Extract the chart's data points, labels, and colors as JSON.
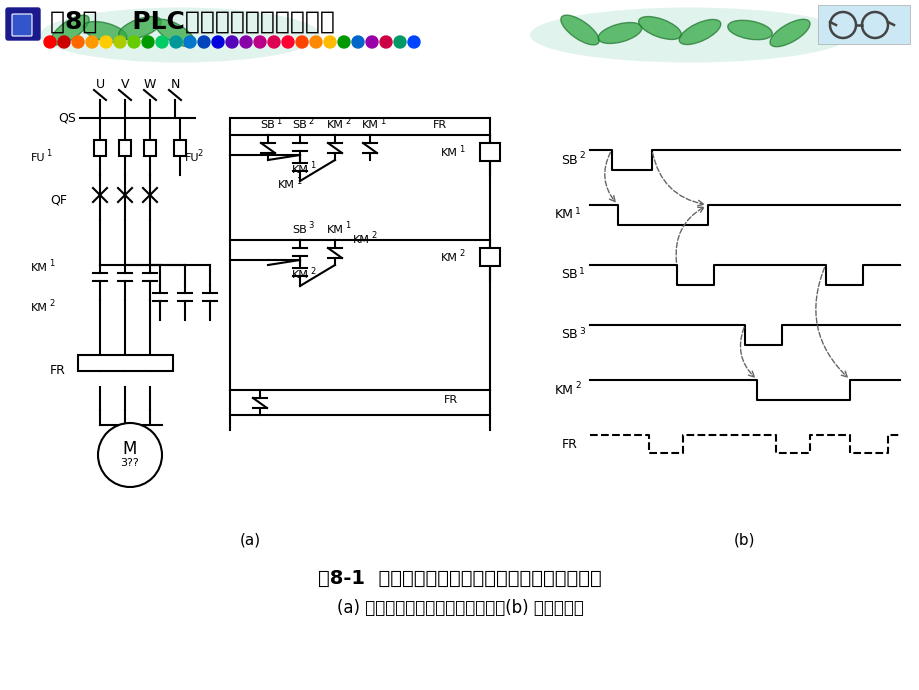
{
  "title": "第8章    PLC控制系统程序设计方法",
  "fig_caption_1": "图8-1  三相异步电动机可逆控制线路及工作时序图",
  "fig_caption_2": "(a) 三相异步电动机可逆控制线路；(b) 工作时序图",
  "label_a": "(a)",
  "label_b": "(b)",
  "bg_color": "#ffffff",
  "dot_colors": [
    "#ff0000",
    "#cc0000",
    "#ff6600",
    "#ff9900",
    "#ffcc00",
    "#aacc00",
    "#66cc00",
    "#009900",
    "#00cc66",
    "#009999",
    "#0077cc",
    "#0044bb",
    "#0000dd",
    "#5500bb",
    "#8800aa",
    "#bb0088",
    "#dd0055",
    "#ff0033",
    "#ff4400",
    "#ff8800",
    "#ffbb00",
    "#009900",
    "#0066cc",
    "#9900aa",
    "#cc0044",
    "#009966",
    "#0044ff"
  ]
}
